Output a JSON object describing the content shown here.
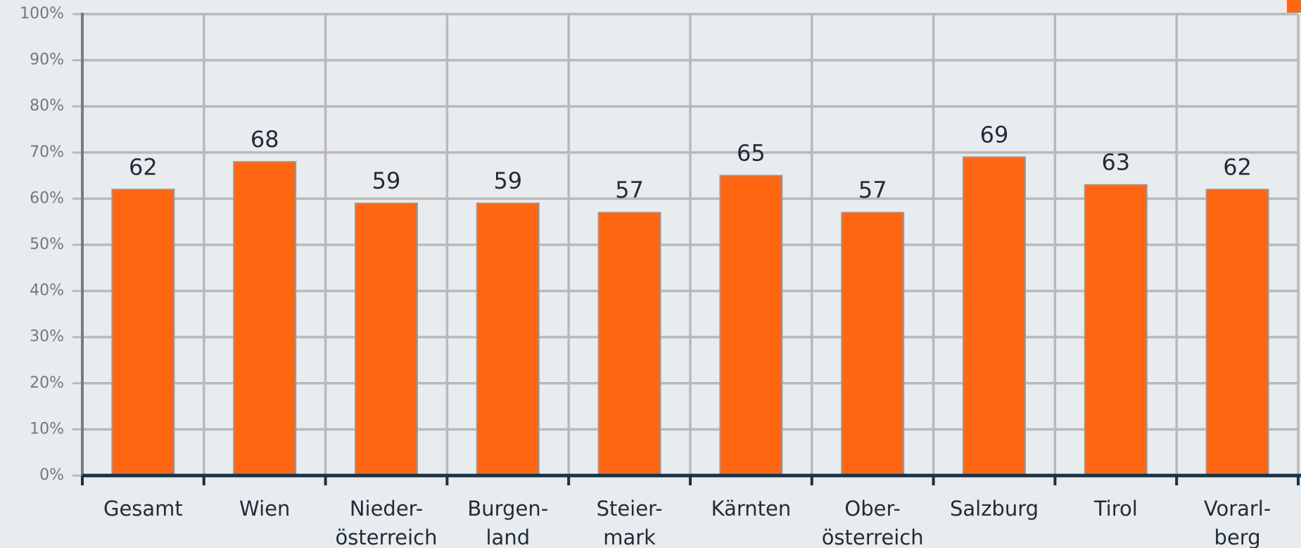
{
  "chart_data": {
    "type": "bar",
    "categories": [
      "Gesamt",
      "Wien",
      "Nieder-\nösterreich",
      "Burgen-\nland",
      "Steier-\nmark",
      "Kärnten",
      "Ober-\nösterreich",
      "Salzburg",
      "Tirol",
      "Vorarl-\nberg"
    ],
    "values": [
      62,
      68,
      59,
      59,
      57,
      65,
      57,
      69,
      63,
      62
    ],
    "color": "#ff6611",
    "ylim": [
      0,
      100
    ],
    "yticks": [
      {
        "value": 0,
        "label": "0%"
      },
      {
        "value": 10,
        "label": "10%"
      },
      {
        "value": 20,
        "label": "20%"
      },
      {
        "value": 30,
        "label": "30%"
      },
      {
        "value": 40,
        "label": "40%"
      },
      {
        "value": 50,
        "label": "50%"
      },
      {
        "value": 60,
        "label": "60%"
      },
      {
        "value": 70,
        "label": "70%"
      },
      {
        "value": 80,
        "label": "80%"
      },
      {
        "value": 90,
        "label": "90%"
      },
      {
        "value": 100,
        "label": "100%"
      }
    ],
    "grid": true
  }
}
